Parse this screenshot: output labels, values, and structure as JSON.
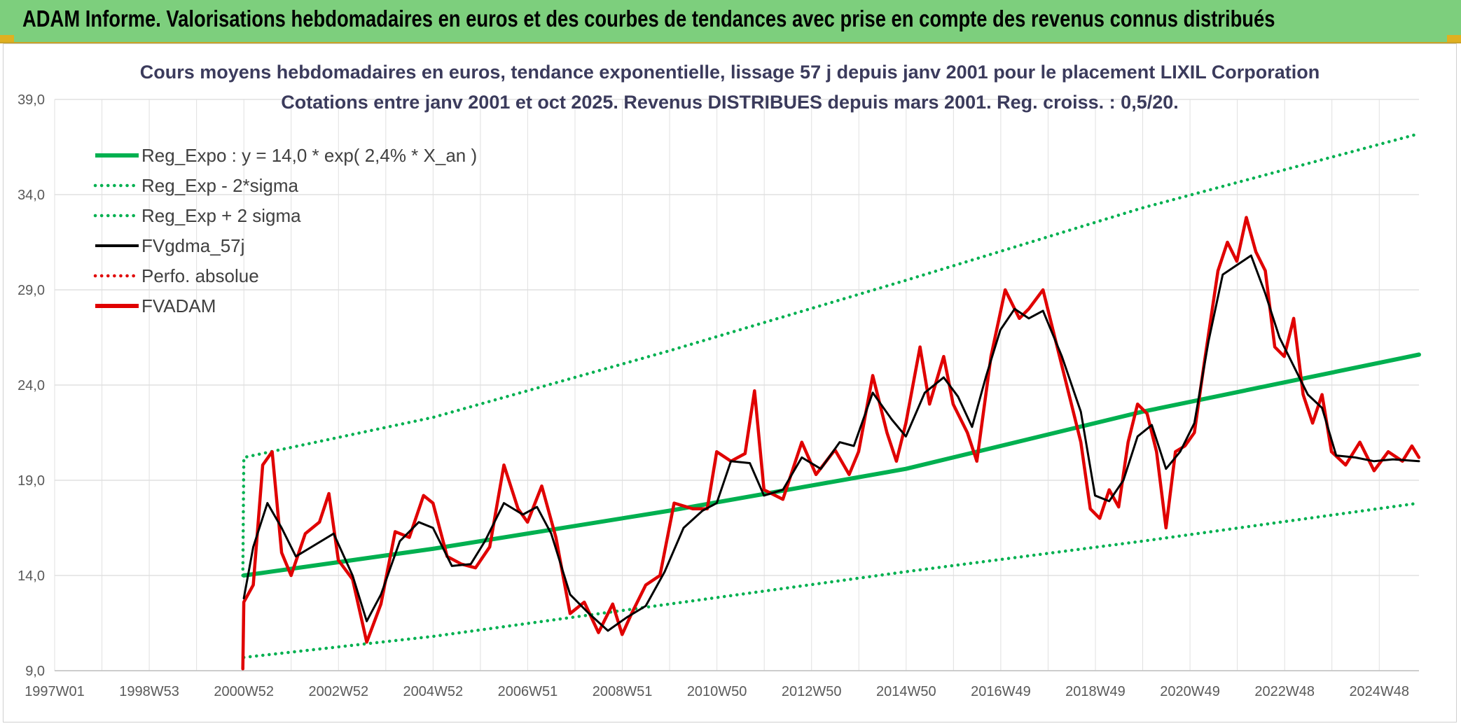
{
  "header": {
    "title": "ADAM Informe. Valorisations hebdomadaires en euros et des courbes de tendances avec prise en compte des revenus connus distribués"
  },
  "chart_data": {
    "type": "line",
    "title": "Cours moyens hebdomadaires en euros, tendance exponentielle, lissage 57 j depuis janv 2001 pour le placement LIXIL Corporation",
    "subtitle": "Cotations entre janv 2001 et oct 2025. Revenus DISTRIBUES depuis mars 2001. Reg. croiss. : 0,5/20.",
    "x_tick_labels": [
      "1997W01",
      "1998W53",
      "2000W52",
      "2002W52",
      "2004W52",
      "2006W51",
      "2008W51",
      "2010W50",
      "2012W50",
      "2014W50",
      "2016W49",
      "2018W49",
      "2020W49",
      "2022W48",
      "2024W48"
    ],
    "x_range": [
      1997.0,
      2025.85
    ],
    "ylim": [
      9.0,
      39.0
    ],
    "y_ticks": [
      "9,0",
      "14,0",
      "19,0",
      "24,0",
      "29,0",
      "34,0",
      "39,0"
    ],
    "y_tick_values": [
      9,
      14,
      19,
      24,
      29,
      34,
      39
    ],
    "grid": true,
    "legend_position": "top-left",
    "series": [
      {
        "name": "Reg_Expo : y = 14,0 * exp( 2,4% *  X_an )",
        "color": "#00b050",
        "style": "solid",
        "points": [
          [
            2001.0,
            14.0
          ],
          [
            2005.0,
            15.4
          ],
          [
            2010.0,
            17.4
          ],
          [
            2015.0,
            19.6
          ],
          [
            2020.0,
            22.6
          ],
          [
            2025.85,
            25.6
          ]
        ]
      },
      {
        "name": "Reg_Exp - 2*sigma",
        "color": "#00b050",
        "style": "dotted",
        "points": [
          [
            2001.0,
            9.7
          ],
          [
            2005.0,
            10.8
          ],
          [
            2010.0,
            12.5
          ],
          [
            2015.0,
            14.2
          ],
          [
            2020.0,
            15.8
          ],
          [
            2025.85,
            17.8
          ]
        ]
      },
      {
        "name": "Reg_Exp + 2 sigma",
        "color": "#00b050",
        "style": "dotted",
        "points": [
          [
            2000.98,
            14.0
          ],
          [
            2001.0,
            20.2
          ],
          [
            2005.0,
            22.3
          ],
          [
            2010.0,
            25.8
          ],
          [
            2015.0,
            29.5
          ],
          [
            2020.0,
            33.3
          ],
          [
            2025.85,
            37.2
          ]
        ]
      },
      {
        "name": "FVgdma_57j",
        "color": "#000000",
        "style": "solid",
        "points": [
          [
            2001.0,
            12.8
          ],
          [
            2001.2,
            15.5
          ],
          [
            2001.5,
            17.8
          ],
          [
            2001.8,
            16.5
          ],
          [
            2002.1,
            15.0
          ],
          [
            2002.5,
            15.6
          ],
          [
            2002.9,
            16.2
          ],
          [
            2003.3,
            14.0
          ],
          [
            2003.6,
            11.6
          ],
          [
            2003.9,
            13.0
          ],
          [
            2004.3,
            15.8
          ],
          [
            2004.7,
            16.8
          ],
          [
            2005.0,
            16.5
          ],
          [
            2005.4,
            14.5
          ],
          [
            2005.8,
            14.6
          ],
          [
            2006.1,
            15.8
          ],
          [
            2006.5,
            17.8
          ],
          [
            2006.9,
            17.2
          ],
          [
            2007.2,
            17.6
          ],
          [
            2007.5,
            16.2
          ],
          [
            2007.9,
            13.0
          ],
          [
            2008.3,
            12.0
          ],
          [
            2008.7,
            11.1
          ],
          [
            2009.1,
            11.8
          ],
          [
            2009.5,
            12.4
          ],
          [
            2009.9,
            14.2
          ],
          [
            2010.3,
            16.5
          ],
          [
            2010.7,
            17.4
          ],
          [
            2011.0,
            17.8
          ],
          [
            2011.3,
            20.0
          ],
          [
            2011.7,
            19.9
          ],
          [
            2012.0,
            18.2
          ],
          [
            2012.4,
            18.5
          ],
          [
            2012.8,
            20.2
          ],
          [
            2013.2,
            19.6
          ],
          [
            2013.6,
            21.0
          ],
          [
            2013.9,
            20.8
          ],
          [
            2014.3,
            23.6
          ],
          [
            2014.7,
            22.2
          ],
          [
            2015.0,
            21.3
          ],
          [
            2015.4,
            23.6
          ],
          [
            2015.8,
            24.4
          ],
          [
            2016.1,
            23.4
          ],
          [
            2016.4,
            21.8
          ],
          [
            2016.7,
            24.5
          ],
          [
            2017.0,
            26.9
          ],
          [
            2017.3,
            28.0
          ],
          [
            2017.6,
            27.5
          ],
          [
            2017.9,
            27.9
          ],
          [
            2018.3,
            25.5
          ],
          [
            2018.7,
            22.6
          ],
          [
            2019.0,
            18.2
          ],
          [
            2019.3,
            17.9
          ],
          [
            2019.6,
            19.0
          ],
          [
            2019.9,
            21.3
          ],
          [
            2020.2,
            21.9
          ],
          [
            2020.5,
            19.6
          ],
          [
            2020.8,
            20.5
          ],
          [
            2021.1,
            22.0
          ],
          [
            2021.4,
            26.3
          ],
          [
            2021.7,
            29.8
          ],
          [
            2022.0,
            30.3
          ],
          [
            2022.3,
            30.8
          ],
          [
            2022.6,
            28.8
          ],
          [
            2022.9,
            26.5
          ],
          [
            2023.2,
            25.0
          ],
          [
            2023.5,
            23.5
          ],
          [
            2023.8,
            22.8
          ],
          [
            2024.1,
            20.3
          ],
          [
            2024.5,
            20.2
          ],
          [
            2024.9,
            20.0
          ],
          [
            2025.3,
            20.1
          ],
          [
            2025.85,
            20.0
          ]
        ]
      },
      {
        "name": "Perfo. absolue",
        "color": "#e00000",
        "style": "dotted",
        "points": []
      },
      {
        "name": "FVADAM",
        "color": "#e00000",
        "style": "solid",
        "points": [
          [
            2000.98,
            9.1
          ],
          [
            2001.0,
            12.6
          ],
          [
            2001.2,
            13.5
          ],
          [
            2001.4,
            19.8
          ],
          [
            2001.6,
            20.5
          ],
          [
            2001.8,
            15.2
          ],
          [
            2002.0,
            14.0
          ],
          [
            2002.3,
            16.2
          ],
          [
            2002.6,
            16.8
          ],
          [
            2002.8,
            18.3
          ],
          [
            2003.0,
            14.8
          ],
          [
            2003.3,
            13.8
          ],
          [
            2003.6,
            10.5
          ],
          [
            2003.9,
            12.5
          ],
          [
            2004.2,
            16.3
          ],
          [
            2004.5,
            16.0
          ],
          [
            2004.8,
            18.2
          ],
          [
            2005.0,
            17.8
          ],
          [
            2005.3,
            15.0
          ],
          [
            2005.6,
            14.6
          ],
          [
            2005.9,
            14.4
          ],
          [
            2006.2,
            15.5
          ],
          [
            2006.5,
            19.8
          ],
          [
            2006.8,
            17.5
          ],
          [
            2007.0,
            16.8
          ],
          [
            2007.3,
            18.7
          ],
          [
            2007.6,
            16.0
          ],
          [
            2007.9,
            12.0
          ],
          [
            2008.2,
            12.6
          ],
          [
            2008.5,
            11.0
          ],
          [
            2008.8,
            12.5
          ],
          [
            2009.0,
            10.9
          ],
          [
            2009.2,
            12.0
          ],
          [
            2009.5,
            13.5
          ],
          [
            2009.8,
            14.0
          ],
          [
            2010.1,
            17.8
          ],
          [
            2010.5,
            17.5
          ],
          [
            2010.8,
            17.5
          ],
          [
            2011.0,
            20.5
          ],
          [
            2011.3,
            20.0
          ],
          [
            2011.6,
            20.4
          ],
          [
            2011.8,
            23.7
          ],
          [
            2012.0,
            18.5
          ],
          [
            2012.4,
            18.0
          ],
          [
            2012.8,
            21.0
          ],
          [
            2013.1,
            19.3
          ],
          [
            2013.5,
            20.6
          ],
          [
            2013.8,
            19.3
          ],
          [
            2014.0,
            20.5
          ],
          [
            2014.3,
            24.5
          ],
          [
            2014.6,
            21.5
          ],
          [
            2014.8,
            20.0
          ],
          [
            2015.0,
            22.0
          ],
          [
            2015.3,
            26.0
          ],
          [
            2015.5,
            23.0
          ],
          [
            2015.8,
            25.5
          ],
          [
            2016.0,
            23.0
          ],
          [
            2016.3,
            21.5
          ],
          [
            2016.5,
            20.0
          ],
          [
            2016.8,
            25.5
          ],
          [
            2017.1,
            29.0
          ],
          [
            2017.4,
            27.5
          ],
          [
            2017.6,
            28.0
          ],
          [
            2017.9,
            29.0
          ],
          [
            2018.1,
            27.0
          ],
          [
            2018.4,
            24.0
          ],
          [
            2018.7,
            21.0
          ],
          [
            2018.9,
            17.5
          ],
          [
            2019.1,
            17.0
          ],
          [
            2019.3,
            18.5
          ],
          [
            2019.5,
            17.6
          ],
          [
            2019.7,
            21.0
          ],
          [
            2019.9,
            23.0
          ],
          [
            2020.1,
            22.5
          ],
          [
            2020.3,
            20.5
          ],
          [
            2020.5,
            16.5
          ],
          [
            2020.7,
            20.5
          ],
          [
            2020.9,
            20.8
          ],
          [
            2021.1,
            21.5
          ],
          [
            2021.3,
            25.0
          ],
          [
            2021.6,
            30.0
          ],
          [
            2021.8,
            31.5
          ],
          [
            2022.0,
            30.5
          ],
          [
            2022.2,
            32.8
          ],
          [
            2022.4,
            31.0
          ],
          [
            2022.6,
            30.0
          ],
          [
            2022.8,
            26.0
          ],
          [
            2023.0,
            25.5
          ],
          [
            2023.2,
            27.5
          ],
          [
            2023.4,
            23.5
          ],
          [
            2023.6,
            22.0
          ],
          [
            2023.8,
            23.5
          ],
          [
            2024.0,
            20.5
          ],
          [
            2024.3,
            19.8
          ],
          [
            2024.6,
            21.0
          ],
          [
            2024.9,
            19.5
          ],
          [
            2025.2,
            20.5
          ],
          [
            2025.5,
            20.0
          ],
          [
            2025.7,
            20.8
          ],
          [
            2025.85,
            20.2
          ]
        ]
      }
    ]
  }
}
